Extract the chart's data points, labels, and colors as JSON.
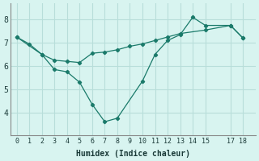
{
  "line1_x": [
    0,
    1,
    2,
    3,
    4,
    5,
    6,
    7,
    8,
    10,
    11,
    12,
    13,
    14,
    15,
    17,
    18
  ],
  "line1_y": [
    7.25,
    6.95,
    6.5,
    5.85,
    5.75,
    5.3,
    4.35,
    3.6,
    3.75,
    5.35,
    6.5,
    7.1,
    7.35,
    8.1,
    7.75,
    7.75,
    7.2
  ],
  "line2_x": [
    0,
    2,
    3,
    4,
    5,
    6,
    7,
    8,
    9,
    10,
    11,
    12,
    13,
    15,
    17,
    18
  ],
  "line2_y": [
    7.25,
    6.5,
    6.25,
    6.2,
    6.15,
    6.55,
    6.6,
    6.7,
    6.85,
    6.95,
    7.1,
    7.25,
    7.4,
    7.55,
    7.75,
    7.2
  ],
  "color": "#1a7a6a",
  "bg_color": "#d8f4f0",
  "grid_color": "#b8deda",
  "xlabel": "Humidex (Indice chaleur)",
  "xlim": [
    -0.5,
    19
  ],
  "ylim": [
    3.0,
    8.7
  ],
  "yticks": [
    4,
    5,
    6,
    7,
    8
  ],
  "xticks": [
    0,
    1,
    2,
    3,
    4,
    5,
    6,
    7,
    8,
    9,
    10,
    11,
    12,
    13,
    14,
    15,
    17,
    18
  ]
}
